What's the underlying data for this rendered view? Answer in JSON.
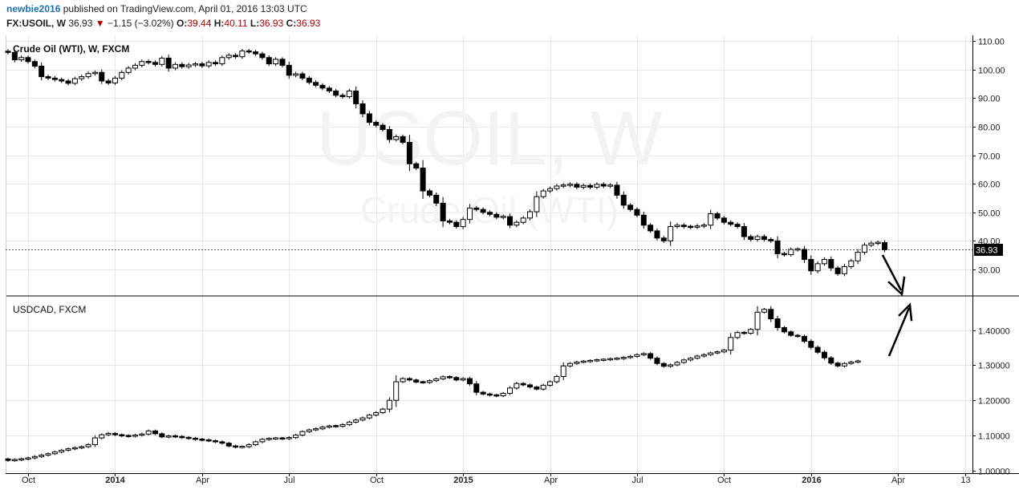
{
  "header": {
    "author": "newbie2016",
    "published": "published on TradingView.com, April 01, 2016 13:03 UTC",
    "symbol": "FX:USOIL, W",
    "last": "36.93",
    "change": "−1.15 (−3.02%)",
    "o_label": "O:",
    "o_val": "39.44",
    "h_label": "H:",
    "h_val": "40.11",
    "l_label": "L:",
    "l_val": "36.93",
    "c_label": "C:",
    "c_val": "36.93"
  },
  "colors": {
    "up_body": "#ffffff",
    "down_body": "#000000",
    "grid": "#e6e6e6",
    "axis": "#000000",
    "price_tag_bg": "#000000",
    "price_tag_fg": "#ffffff",
    "header_red": "#b40000",
    "author_blue": "#1f6fb5"
  },
  "watermark": {
    "symbol": "USOIL, W",
    "name": "Crude Oil (WTI)"
  },
  "chart_data": [
    {
      "type": "candlestick",
      "title": "Crude Oil (WTI), W, FXCM",
      "ylim": [
        21,
        112
      ],
      "yticks": [
        "110.00",
        "100.00",
        "90.00",
        "80.00",
        "70.00",
        "60.00",
        "50.00",
        "40.00",
        "30.00"
      ],
      "ytick_values": [
        110,
        100,
        90,
        80,
        70,
        60,
        50,
        40,
        30
      ],
      "last_price_label": "36.93",
      "last_price": 36.93,
      "grid": true,
      "closes": [
        106,
        103.4,
        104.2,
        102.8,
        101.2,
        97.5,
        97.0,
        96.5,
        96.0,
        95.2,
        96.8,
        97.5,
        98.6,
        99.0,
        96.0,
        95.3,
        97.0,
        99.0,
        100.5,
        101.5,
        102.8,
        102.5,
        101.8,
        104.0,
        100.5,
        101.8,
        101.0,
        101.6,
        102.0,
        101.3,
        102.5,
        102.0,
        104.2,
        105.0,
        104.5,
        106.5,
        106.2,
        105.5,
        104.2,
        102.0,
        103.6,
        101.5,
        98.0,
        98.5,
        97.0,
        95.5,
        94.5,
        93.5,
        92.5,
        91.0,
        90.5,
        92.5,
        88.0,
        84.5,
        81.5,
        80.5,
        79.0,
        75.5,
        76.5,
        74.5,
        67.0,
        65.5,
        57.5,
        56.0,
        53.2,
        47.0,
        46.5,
        45.0,
        47.5,
        51.5,
        51.0,
        50.0,
        49.3,
        48.3,
        48.5,
        45.5,
        46.5,
        48.0,
        50.2,
        55.5,
        57.5,
        58.3,
        59.2,
        59.5,
        59.8,
        58.8,
        59.4,
        58.8,
        59.8,
        59.2,
        59.5,
        56.0,
        52.5,
        51.0,
        49.0,
        45.5,
        43.5,
        41.0,
        40.0,
        45.0,
        45.5,
        45.0,
        44.8,
        45.2,
        45.5,
        49.5,
        48.0,
        46.5,
        45.8,
        45.0,
        41.5,
        40.5,
        41.5,
        40.5,
        40.0,
        35.5,
        35.2,
        37.0,
        37.0,
        33.5,
        29.5,
        32.0,
        33.5,
        30.5,
        28.5,
        31.0,
        33.0,
        36.0,
        38.5,
        39.2,
        39.4,
        36.93
      ]
    },
    {
      "type": "candlestick",
      "title": "USDCAD, FXCM",
      "ylim": [
        0.995,
        1.495
      ],
      "yticks": [
        "1.40000",
        "1.30000",
        "1.20000",
        "1.10000",
        "1.00000"
      ],
      "ytick_values": [
        1.4,
        1.3,
        1.2,
        1.1,
        1.0
      ],
      "grid": true,
      "closes": [
        1.029,
        1.031,
        1.033,
        1.036,
        1.04,
        1.044,
        1.048,
        1.053,
        1.058,
        1.062,
        1.065,
        1.068,
        1.074,
        1.093,
        1.102,
        1.106,
        1.102,
        1.099,
        1.098,
        1.101,
        1.104,
        1.113,
        1.105,
        1.096,
        1.098,
        1.097,
        1.094,
        1.092,
        1.089,
        1.087,
        1.085,
        1.082,
        1.078,
        1.07,
        1.067,
        1.068,
        1.074,
        1.082,
        1.089,
        1.091,
        1.092,
        1.091,
        1.094,
        1.101,
        1.111,
        1.116,
        1.119,
        1.124,
        1.127,
        1.126,
        1.131,
        1.138,
        1.144,
        1.15,
        1.158,
        1.165,
        1.175,
        1.2,
        1.253,
        1.262,
        1.258,
        1.252,
        1.251,
        1.256,
        1.261,
        1.267,
        1.265,
        1.258,
        1.262,
        1.247,
        1.223,
        1.218,
        1.215,
        1.213,
        1.22,
        1.235,
        1.248,
        1.244,
        1.238,
        1.232,
        1.243,
        1.253,
        1.268,
        1.298,
        1.305,
        1.309,
        1.311,
        1.313,
        1.315,
        1.316,
        1.318,
        1.319,
        1.322,
        1.325,
        1.33,
        1.333,
        1.32,
        1.305,
        1.297,
        1.301,
        1.308,
        1.315,
        1.32,
        1.326,
        1.33,
        1.335,
        1.338,
        1.343,
        1.379,
        1.393,
        1.391,
        1.402,
        1.451,
        1.459,
        1.432,
        1.407,
        1.395,
        1.385,
        1.382,
        1.368,
        1.351,
        1.337,
        1.321,
        1.306,
        1.298,
        1.305,
        1.309,
        1.312
      ]
    }
  ],
  "x_axis": {
    "labels": [
      {
        "text": "Oct",
        "bold": false,
        "week": 3
      },
      {
        "text": "2014",
        "bold": true,
        "week": 16
      },
      {
        "text": "Apr",
        "bold": false,
        "week": 29
      },
      {
        "text": "Jul",
        "bold": false,
        "week": 42
      },
      {
        "text": "Oct",
        "bold": false,
        "week": 55
      },
      {
        "text": "2015",
        "bold": true,
        "week": 68
      },
      {
        "text": "Apr",
        "bold": false,
        "week": 81
      },
      {
        "text": "Jul",
        "bold": false,
        "week": 94
      },
      {
        "text": "Oct",
        "bold": false,
        "week": 107
      },
      {
        "text": "2016",
        "bold": true,
        "week": 120
      },
      {
        "text": "Apr",
        "bold": false,
        "week": 133
      },
      {
        "text": "13",
        "bold": false,
        "week": 143
      }
    ]
  }
}
